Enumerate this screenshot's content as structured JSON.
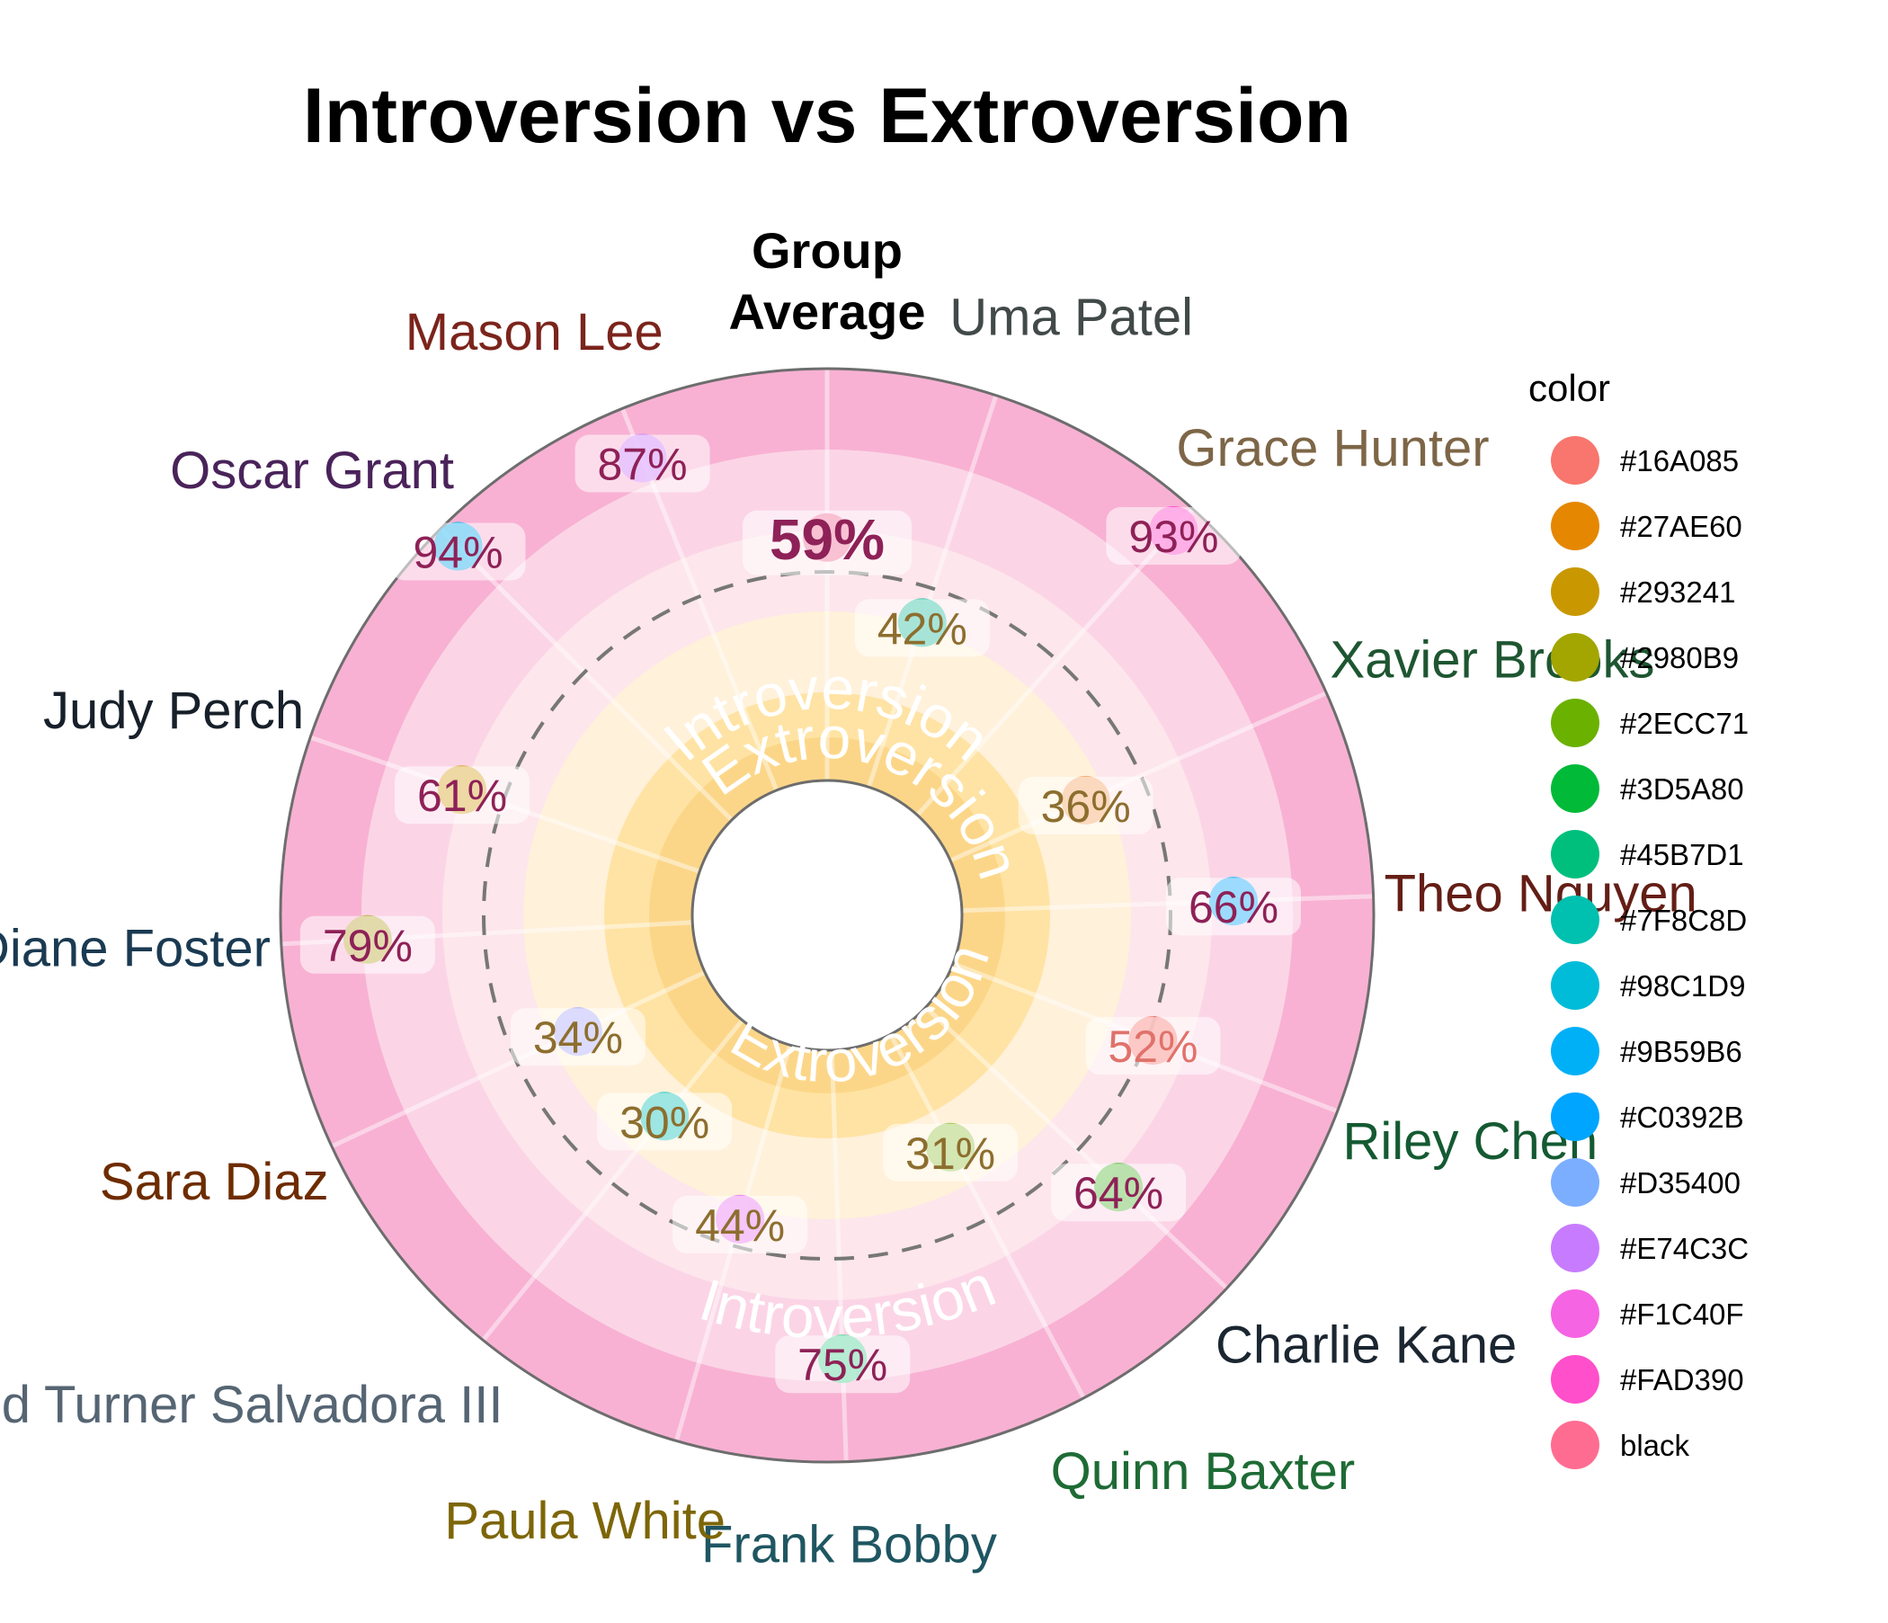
{
  "chart_data": {
    "type": "radial-scatter",
    "title": "Introversion vs Extroversion",
    "center_label_line1": "Group",
    "center_label_line2": "Average",
    "band_labels": {
      "introversion_top": "Introversion",
      "extroversion_top": "Extroversion",
      "extroversion_bottom": "Extroversion",
      "introversion_bottom": "Introversion"
    },
    "scale": {
      "min": 0,
      "max": 100,
      "unit": "%"
    },
    "group_average": {
      "value": 59,
      "label": "59%",
      "label_color": "#8E2157",
      "point_color": "#F06292"
    },
    "points": [
      {
        "name": "Uma Patel",
        "value": 42,
        "label": "42%",
        "angle_deg": 18,
        "name_color": "#424949",
        "point_color": "#1ABC9C",
        "label_color": "#8D6E2E"
      },
      {
        "name": "Grace Hunter",
        "value": 93,
        "label": "93%",
        "angle_deg": 42,
        "name_color": "#7D6647",
        "point_color": "#FF3EC9",
        "label_color": "#8E2157"
      },
      {
        "name": "Xavier Brooks",
        "value": 36,
        "label": "36%",
        "angle_deg": 66,
        "name_color": "#1E5631",
        "point_color": "#F3A05D",
        "label_color": "#8D6E2E"
      },
      {
        "name": "Theo Nguyen",
        "value": 66,
        "label": "66%",
        "angle_deg": 88,
        "name_color": "#641E16",
        "point_color": "#00A9FF",
        "label_color": "#8E2157"
      },
      {
        "name": "Riley Chen",
        "value": 52,
        "label": "52%",
        "angle_deg": 111,
        "name_color": "#145A32",
        "point_color": "#F8766D",
        "label_color": "#E0726B"
      },
      {
        "name": "Charlie Kane",
        "value": 64,
        "label": "64%",
        "angle_deg": 133,
        "name_color": "#1B2631",
        "point_color": "#4CB82E",
        "label_color": "#8E2157"
      },
      {
        "name": "Quinn Baxter",
        "value": 31,
        "label": "31%",
        "angle_deg": 152,
        "name_color": "#1E6B35",
        "point_color": "#8FC13E",
        "label_color": "#8D6E2E"
      },
      {
        "name": "Frank Bobby",
        "value": 75,
        "label": "75%",
        "angle_deg": 178,
        "name_color": "#1F5662",
        "point_color": "#3ED38F",
        "label_color": "#8E2157"
      },
      {
        "name": "Paula White",
        "value": 44,
        "label": "44%",
        "angle_deg": 196,
        "name_color": "#7D6608",
        "point_color": "#E76BF3",
        "label_color": "#8D6E2E"
      },
      {
        "name": "Reginald Turner Salvadora III",
        "value": 30,
        "label": "30%",
        "angle_deg": 219,
        "name_color": "#566573",
        "point_color": "#00C0B8",
        "label_color": "#8D6E2E"
      },
      {
        "name": "Sara Diaz",
        "value": 34,
        "label": "34%",
        "angle_deg": 245,
        "name_color": "#6E2C00",
        "point_color": "#A3A5FF",
        "label_color": "#8D6E2E"
      },
      {
        "name": "Diane Foster",
        "value": 79,
        "label": "79%",
        "angle_deg": 267,
        "name_color": "#1A3A52",
        "point_color": "#B5A72C",
        "label_color": "#8E2157"
      },
      {
        "name": "Judy Perch",
        "value": 61,
        "label": "61%",
        "angle_deg": 289,
        "name_color": "#17202A",
        "point_color": "#D4A017",
        "label_color": "#8E2157"
      },
      {
        "name": "Oscar Grant",
        "value": 94,
        "label": "94%",
        "angle_deg": 315,
        "name_color": "#4A235A",
        "point_color": "#00B0F0",
        "label_color": "#8E2157"
      },
      {
        "name": "Mason Lee",
        "value": 87,
        "label": "87%",
        "angle_deg": 338,
        "name_color": "#7B241C",
        "point_color": "#C77CFF",
        "label_color": "#8E2157"
      }
    ],
    "legend": {
      "title": "color",
      "position": "right",
      "items": [
        {
          "label": "#16A085",
          "color": "#F8766D"
        },
        {
          "label": "#27AE60",
          "color": "#E58700"
        },
        {
          "label": "#293241",
          "color": "#C99800"
        },
        {
          "label": "#2980B9",
          "color": "#A3A500"
        },
        {
          "label": "#2ECC71",
          "color": "#6BB100"
        },
        {
          "label": "#3D5A80",
          "color": "#00BA38"
        },
        {
          "label": "#45B7D1",
          "color": "#00BF7D"
        },
        {
          "label": "#7F8C8D",
          "color": "#00C0AF"
        },
        {
          "label": "#98C1D9",
          "color": "#00BCD8"
        },
        {
          "label": "#9B59B6",
          "color": "#00B0F6"
        },
        {
          "label": "#C0392B",
          "color": "#00A5FF"
        },
        {
          "label": "#D35400",
          "color": "#7CAEFF"
        },
        {
          "label": "#E74C3C",
          "color": "#C77CFF"
        },
        {
          "label": "#F1C40F",
          "color": "#F564E3"
        },
        {
          "label": "#FAD390",
          "color": "#FF4FCB"
        },
        {
          "label": "black",
          "color": "#FF6C91"
        }
      ]
    },
    "band_colors": [
      "#F8B1D3",
      "#FBD5E6",
      "#FDE6EC",
      "#FFF1DA",
      "#FFE3A4",
      "#FCD688"
    ]
  }
}
